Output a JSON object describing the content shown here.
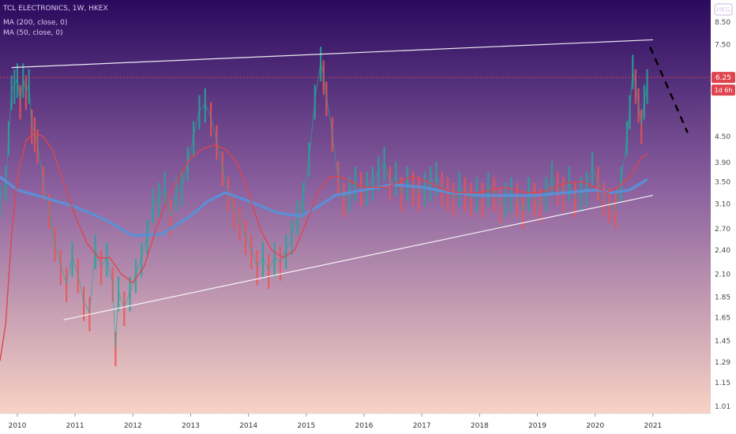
{
  "header": {
    "symbol_line": "TCL ELECTRONICS, 1W, HKEX",
    "indicator_1": "MA (200, close, 0)",
    "indicator_2": "MA (50, close, 0)",
    "badge": "HKG"
  },
  "price_tag": {
    "value": "6.25",
    "countdown": "1d 6h"
  },
  "colors": {
    "bg_top": "#2a0a5e",
    "bg_mid": "#8a5f9e",
    "bg_bottom": "#f7d3c4",
    "candle_up": "#26a69a",
    "candle_down": "#ef5350",
    "ma50": "#e0444e",
    "ma200": "#5b8fd6",
    "trendline": "#ffffff",
    "price_line": "#e0444e",
    "projection": "#000000",
    "axis_panel": "#ffffff"
  },
  "chart_data": {
    "type": "line",
    "title": "TCL ELECTRONICS, 1W, HKEX",
    "y_scale": "log",
    "ylim": [
      0.97,
      9.6
    ],
    "xlim": [
      2009.7,
      2022.0
    ],
    "y_ticks": [
      "8.50",
      "7.50",
      "6.25",
      "4.50",
      "3.90",
      "3.50",
      "3.10",
      "2.70",
      "2.40",
      "2.10",
      "1.85",
      "1.65",
      "1.45",
      "1.29",
      "1.15",
      "1.01"
    ],
    "y_tick_values": [
      8.5,
      7.5,
      6.25,
      4.5,
      3.9,
      3.5,
      3.1,
      2.7,
      2.4,
      2.1,
      1.85,
      1.65,
      1.45,
      1.29,
      1.15,
      1.01
    ],
    "x_ticks": [
      "2010",
      "2011",
      "2012",
      "2013",
      "2014",
      "2015",
      "2016",
      "2017",
      "2018",
      "2019",
      "2020",
      "2021"
    ],
    "x_tick_values": [
      2010,
      2011,
      2012,
      2013,
      2014,
      2015,
      2016,
      2017,
      2018,
      2019,
      2020,
      2021
    ],
    "series": [
      {
        "name": "MA (50, close, 0)",
        "x": [
          2009.7,
          2009.8,
          2009.9,
          2010.0,
          2010.15,
          2010.3,
          2010.45,
          2010.6,
          2010.8,
          2011.0,
          2011.2,
          2011.4,
          2011.6,
          2011.8,
          2012.0,
          2012.2,
          2012.4,
          2012.6,
          2012.8,
          2013.0,
          2013.2,
          2013.4,
          2013.6,
          2013.8,
          2014.0,
          2014.2,
          2014.4,
          2014.6,
          2014.8,
          2015.0,
          2015.2,
          2015.4,
          2015.6,
          2015.8,
          2016.0,
          2016.2,
          2016.4,
          2016.6,
          2016.8,
          2017.0,
          2017.2,
          2017.4,
          2017.6,
          2017.8,
          2018.0,
          2018.2,
          2018.4,
          2018.6,
          2018.8,
          2019.0,
          2019.2,
          2019.4,
          2019.6,
          2019.8,
          2020.0,
          2020.2,
          2020.4,
          2020.6,
          2020.8,
          2020.9
        ],
        "values": [
          1.3,
          1.6,
          2.6,
          3.6,
          4.4,
          4.6,
          4.5,
          4.2,
          3.5,
          2.9,
          2.5,
          2.3,
          2.3,
          2.1,
          2.0,
          2.2,
          2.7,
          3.2,
          3.6,
          4.0,
          4.2,
          4.3,
          4.2,
          3.9,
          3.3,
          2.7,
          2.4,
          2.3,
          2.4,
          2.8,
          3.3,
          3.6,
          3.6,
          3.5,
          3.4,
          3.4,
          3.4,
          3.5,
          3.6,
          3.55,
          3.45,
          3.35,
          3.3,
          3.3,
          3.3,
          3.35,
          3.4,
          3.35,
          3.3,
          3.3,
          3.35,
          3.45,
          3.5,
          3.5,
          3.4,
          3.3,
          3.4,
          3.6,
          4.0,
          4.1
        ]
      },
      {
        "name": "MA (200, close, 0)",
        "x": [
          2009.7,
          2010.0,
          2010.5,
          2011.0,
          2011.5,
          2012.0,
          2012.5,
          2013.0,
          2013.3,
          2013.6,
          2014.0,
          2014.5,
          2014.9,
          2015.2,
          2015.5,
          2016.0,
          2016.5,
          2017.0,
          2017.5,
          2018.0,
          2018.5,
          2019.0,
          2019.5,
          2020.0,
          2020.3,
          2020.6,
          2020.9
        ],
        "values": [
          3.6,
          3.35,
          3.2,
          3.05,
          2.85,
          2.6,
          2.62,
          2.9,
          3.15,
          3.3,
          3.15,
          2.95,
          2.9,
          3.05,
          3.25,
          3.35,
          3.45,
          3.4,
          3.3,
          3.25,
          3.25,
          3.25,
          3.3,
          3.35,
          3.3,
          3.35,
          3.55
        ]
      },
      {
        "name": "weekly close",
        "x": [
          2009.7,
          2009.8,
          2009.85,
          2009.9,
          2009.95,
          2010.0,
          2010.05,
          2010.1,
          2010.15,
          2010.2,
          2010.25,
          2010.3,
          2010.35,
          2010.45,
          2010.55,
          2010.65,
          2010.75,
          2010.85,
          2010.95,
          2011.05,
          2011.15,
          2011.25,
          2011.35,
          2011.45,
          2011.55,
          2011.65,
          2011.7,
          2011.75,
          2011.85,
          2011.95,
          2012.05,
          2012.15,
          2012.25,
          2012.35,
          2012.45,
          2012.55,
          2012.65,
          2012.75,
          2012.85,
          2012.95,
          2013.05,
          2013.15,
          2013.25,
          2013.35,
          2013.45,
          2013.55,
          2013.65,
          2013.75,
          2013.85,
          2013.95,
          2014.05,
          2014.15,
          2014.25,
          2014.35,
          2014.45,
          2014.55,
          2014.65,
          2014.75,
          2014.85,
          2014.95,
          2015.05,
          2015.15,
          2015.25,
          2015.3,
          2015.35,
          2015.45,
          2015.55,
          2015.65,
          2015.75,
          2015.85,
          2015.95,
          2016.05,
          2016.15,
          2016.25,
          2016.35,
          2016.45,
          2016.55,
          2016.65,
          2016.75,
          2016.85,
          2016.95,
          2017.05,
          2017.15,
          2017.25,
          2017.35,
          2017.45,
          2017.55,
          2017.65,
          2017.75,
          2017.85,
          2017.95,
          2018.05,
          2018.15,
          2018.25,
          2018.35,
          2018.45,
          2018.55,
          2018.65,
          2018.75,
          2018.85,
          2018.95,
          2019.05,
          2019.15,
          2019.25,
          2019.35,
          2019.45,
          2019.55,
          2019.65,
          2019.75,
          2019.85,
          2019.95,
          2020.05,
          2020.15,
          2020.25,
          2020.35,
          2020.45,
          2020.55,
          2020.6,
          2020.65,
          2020.7,
          2020.75,
          2020.8,
          2020.85,
          2020.9
        ],
        "values": [
          3.2,
          3.5,
          4.5,
          5.8,
          6.0,
          6.2,
          5.5,
          6.2,
          5.8,
          6.0,
          4.8,
          4.6,
          4.3,
          3.5,
          3.0,
          2.5,
          2.2,
          2.0,
          2.3,
          2.1,
          1.8,
          1.7,
          2.4,
          2.2,
          2.3,
          2.0,
          1.4,
          1.9,
          1.75,
          1.9,
          2.1,
          2.3,
          2.6,
          3.1,
          3.2,
          3.4,
          2.9,
          3.3,
          3.4,
          3.9,
          4.5,
          5.2,
          5.4,
          5.0,
          4.4,
          3.8,
          3.3,
          3.0,
          2.8,
          2.6,
          2.4,
          2.2,
          2.3,
          2.15,
          2.3,
          2.25,
          2.4,
          2.6,
          2.9,
          3.2,
          4.0,
          5.5,
          6.8,
          6.3,
          5.6,
          4.6,
          3.6,
          3.2,
          3.3,
          3.5,
          3.4,
          3.4,
          3.5,
          3.7,
          3.9,
          3.5,
          3.6,
          3.3,
          3.5,
          3.4,
          3.3,
          3.4,
          3.5,
          3.6,
          3.4,
          3.3,
          3.2,
          3.4,
          3.3,
          3.2,
          3.3,
          3.2,
          3.4,
          3.3,
          3.1,
          3.2,
          3.3,
          3.2,
          3.0,
          3.3,
          3.2,
          3.1,
          3.3,
          3.6,
          3.4,
          3.3,
          3.5,
          3.2,
          3.3,
          3.4,
          3.8,
          3.5,
          3.2,
          3.1,
          3.0,
          3.5,
          4.5,
          5.2,
          6.5,
          6.0,
          5.4,
          4.8,
          5.5,
          6.0
        ]
      }
    ],
    "trendlines": [
      {
        "name": "upper",
        "x": [
          2009.9,
          2021.0
        ],
        "values": [
          6.6,
          7.7
        ]
      },
      {
        "name": "lower",
        "x": [
          2010.8,
          2021.0
        ],
        "values": [
          1.63,
          3.25
        ]
      },
      {
        "name": "projection",
        "x": [
          2020.95,
          2021.6
        ],
        "values": [
          7.4,
          4.6
        ],
        "style": "dashed"
      }
    ],
    "current_price": 6.25,
    "grid": false,
    "legend": "top-left"
  }
}
